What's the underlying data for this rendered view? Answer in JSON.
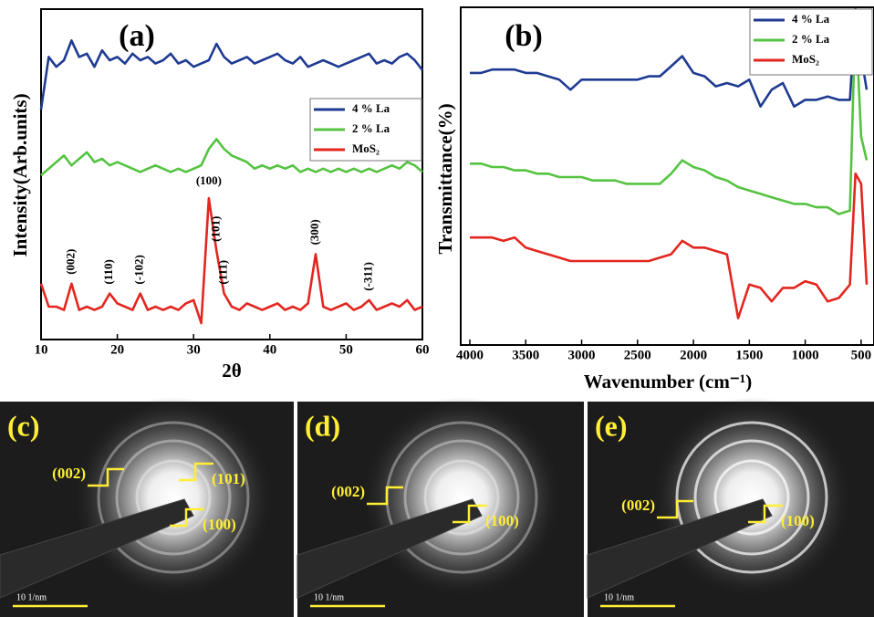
{
  "chart_data": [
    {
      "type": "line",
      "panel": "(a)",
      "x_label": "2θ",
      "y_label": "Intensity(Arb.units)",
      "x": [
        10,
        11,
        12,
        13,
        14,
        15,
        16,
        17,
        18,
        19,
        20,
        21,
        22,
        23,
        24,
        25,
        26,
        27,
        28,
        29,
        30,
        31,
        32,
        33,
        34,
        35,
        36,
        37,
        38,
        39,
        40,
        41,
        42,
        43,
        44,
        45,
        46,
        47,
        48,
        49,
        50,
        51,
        52,
        53,
        54,
        55,
        56,
        57,
        58,
        59,
        60
      ],
      "xlim": [
        10,
        60
      ],
      "xticks": [
        10,
        20,
        30,
        40,
        50,
        60
      ],
      "ylim": [
        0,
        100
      ],
      "series": [
        {
          "name": "4 % La",
          "color": "#1f3a93",
          "values": [
            70,
            86,
            83,
            85,
            91,
            86,
            87,
            83,
            88,
            85,
            86,
            84,
            87,
            85,
            86,
            84,
            85,
            87,
            84,
            85,
            83,
            84,
            85,
            90,
            86,
            84,
            85,
            86,
            84,
            85,
            86,
            87,
            85,
            84,
            86,
            83,
            84,
            85,
            84,
            83,
            84,
            85,
            86,
            87,
            84,
            85,
            84,
            86,
            87,
            85,
            82
          ]
        },
        {
          "name": "2 % La",
          "color": "#55c341",
          "values": [
            50,
            52,
            54,
            56,
            53,
            55,
            57,
            54,
            55,
            53,
            54,
            53,
            52,
            51,
            52,
            53,
            52,
            51,
            52,
            51,
            52,
            53,
            58,
            61,
            58,
            56,
            55,
            54,
            52,
            53,
            52,
            53,
            52,
            53,
            51,
            52,
            51,
            52,
            51,
            52,
            51,
            52,
            51,
            52,
            51,
            52,
            53,
            52,
            54,
            53,
            51
          ]
        },
        {
          "name": "MoS₂",
          "color": "#e3261f",
          "values": [
            17,
            10,
            10,
            9,
            17,
            9,
            10,
            9,
            10,
            14,
            11,
            10,
            9,
            14,
            9,
            10,
            9,
            10,
            9,
            11,
            12,
            5,
            43,
            27,
            14,
            10,
            9,
            11,
            10,
            9,
            10,
            11,
            9,
            10,
            9,
            11,
            26,
            10,
            9,
            10,
            11,
            9,
            10,
            12,
            9,
            10,
            11,
            10,
            12,
            9,
            10
          ]
        }
      ],
      "annotations": [
        {
          "text": "(002)",
          "x": 14
        },
        {
          "text": "(110)",
          "x": 19
        },
        {
          "text": "(-102)",
          "x": 23
        },
        {
          "text": "(100)",
          "x": 32
        },
        {
          "text": "(101)",
          "x": 33
        },
        {
          "text": "(111)",
          "x": 34
        },
        {
          "text": "(300)",
          "x": 46
        },
        {
          "text": "(-311)",
          "x": 53
        }
      ]
    },
    {
      "type": "line",
      "panel": "(b)",
      "x_label": "Wavenumber (cm⁻¹)",
      "y_label": "Transmittance(%)",
      "x": [
        4000,
        3900,
        3800,
        3700,
        3600,
        3500,
        3400,
        3300,
        3200,
        3100,
        3000,
        2900,
        2800,
        2700,
        2600,
        2500,
        2400,
        2300,
        2200,
        2100,
        2000,
        1900,
        1800,
        1700,
        1600,
        1500,
        1400,
        1300,
        1200,
        1100,
        1000,
        900,
        800,
        700,
        600,
        550,
        500,
        450
      ],
      "xlim": [
        4000,
        450
      ],
      "xticks": [
        4000,
        3500,
        3000,
        2500,
        2000,
        1500,
        1000,
        500
      ],
      "ylim": [
        0,
        100
      ],
      "series": [
        {
          "name": "4 % La",
          "color": "#1f3a93",
          "values": [
            81,
            81,
            82,
            82,
            82,
            81,
            81,
            80,
            79,
            76,
            79,
            79,
            79,
            79,
            79,
            79,
            80,
            80,
            83,
            86,
            81,
            80,
            77,
            78,
            77,
            79,
            71,
            76,
            78,
            71,
            73,
            73,
            74,
            73,
            73,
            100,
            86,
            76
          ]
        },
        {
          "name": "2 % La",
          "color": "#55c341",
          "values": [
            54,
            54,
            53,
            53,
            52,
            52,
            51,
            51,
            50,
            50,
            50,
            49,
            49,
            49,
            48,
            48,
            48,
            48,
            51,
            55,
            53,
            52,
            50,
            49,
            47,
            46,
            45,
            44,
            43,
            42,
            42,
            41,
            41,
            39,
            40,
            99,
            62,
            55
          ]
        },
        {
          "name": "MoS₂",
          "color": "#e3261f",
          "values": [
            32,
            32,
            32,
            31,
            32,
            29,
            28,
            27,
            26,
            25,
            25,
            25,
            25,
            25,
            25,
            25,
            25,
            26,
            27,
            31,
            29,
            29,
            28,
            27,
            8,
            18,
            17,
            13,
            17,
            17,
            19,
            18,
            13,
            14,
            18,
            51,
            48,
            18
          ]
        }
      ]
    }
  ],
  "images": [
    {
      "label": "(c)",
      "rings": [
        "(002)",
        "(101)",
        "(100)"
      ],
      "scale": "10 1/nm"
    },
    {
      "label": "(d)",
      "rings": [
        "(002)",
        "(100)"
      ],
      "scale": "10 1/nm"
    },
    {
      "label": "(e)",
      "rings": [
        "(002)",
        "(100)"
      ],
      "scale": "10 1/nm"
    }
  ]
}
